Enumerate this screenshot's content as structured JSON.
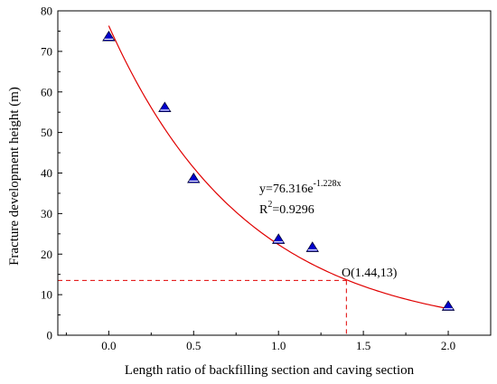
{
  "chart_data": {
    "type": "scatter",
    "title": "",
    "xlabel": "Length ratio of backfilling section and caving section",
    "ylabel": "Fracture development height (m)",
    "xlim": [
      -0.3,
      2.25
    ],
    "ylim": [
      0,
      80
    ],
    "xticks": [
      0.0,
      0.5,
      1.0,
      1.5,
      2.0
    ],
    "xtick_labels": [
      "0.0",
      "0.5",
      "1.0",
      "1.5",
      "2.0"
    ],
    "yticks": [
      0,
      10,
      20,
      30,
      40,
      50,
      60,
      70,
      80
    ],
    "ytick_labels": [
      "0",
      "10",
      "20",
      "30",
      "40",
      "50",
      "60",
      "70",
      "80"
    ],
    "grid": false,
    "series": [
      {
        "marker": "triangle",
        "color": "#0000cc",
        "x": [
          0.0,
          0.33,
          0.5,
          1.0,
          1.2,
          2.0
        ],
        "y": [
          73.5,
          56.0,
          38.5,
          23.5,
          21.5,
          7.0
        ]
      }
    ],
    "fit_curve": {
      "color": "#e00000",
      "a": 76.316,
      "b": -1.228,
      "x_range": [
        0.0,
        2.0
      ]
    },
    "reference_point": {
      "x": 1.4,
      "y": 13.5,
      "color": "#e00000",
      "label": "O(1.44,13)"
    },
    "equation": {
      "base": "y=76.316e",
      "exponent": "-1.228x",
      "r2_prefix": "R",
      "r2_sup": "2",
      "r2_value": "=0.9296"
    }
  }
}
